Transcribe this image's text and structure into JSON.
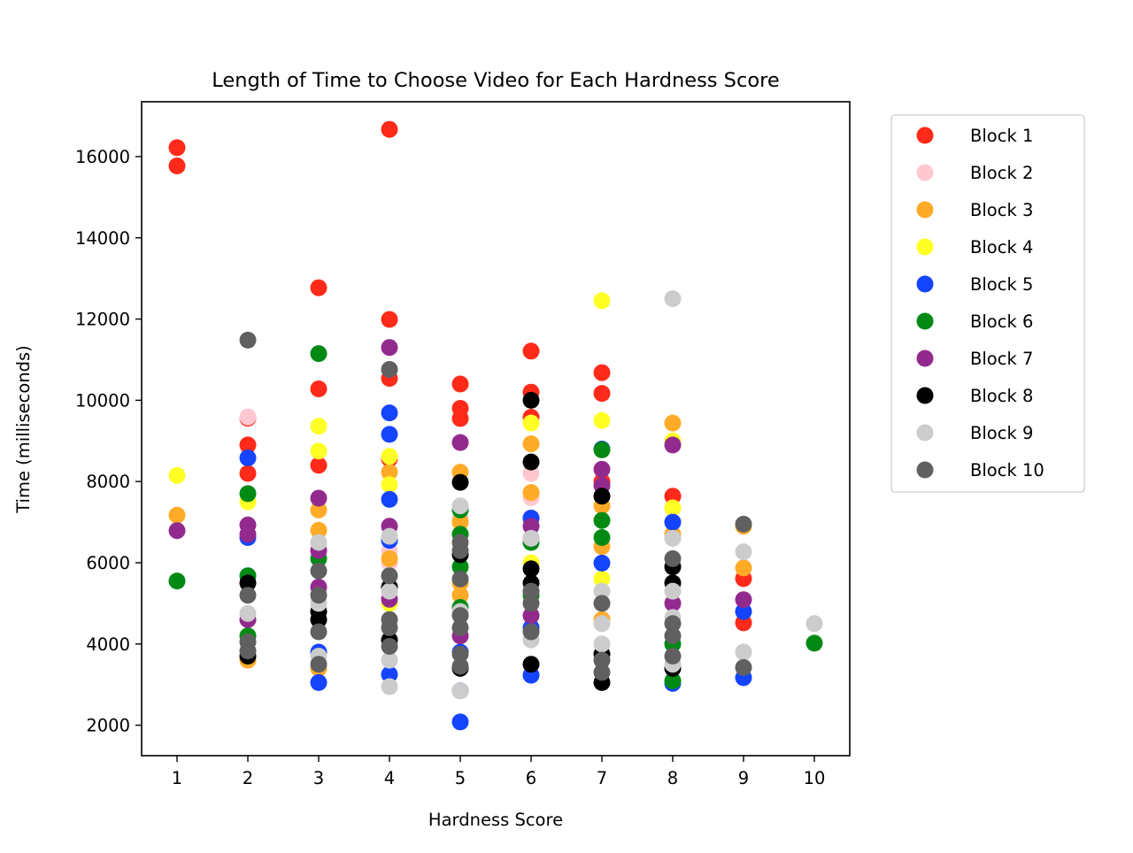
{
  "chart_data": {
    "type": "scatter",
    "title": "Length of Time to Choose Video for Each Hardness Score",
    "xlabel": "Hardness Score",
    "ylabel": "Time (milliseconds)",
    "xlim": [
      0.5,
      10.5
    ],
    "ylim": [
      1250,
      17350
    ],
    "x_ticks": [
      1,
      2,
      3,
      4,
      5,
      6,
      7,
      8,
      9,
      10
    ],
    "y_ticks": [
      2000,
      4000,
      6000,
      8000,
      10000,
      12000,
      14000,
      16000
    ],
    "grid": false,
    "legend_position": "outside-right",
    "series": [
      {
        "name": "Block 1",
        "color": "#ff2a1a",
        "points": [
          [
            1,
            16220
          ],
          [
            1,
            15770
          ],
          [
            2,
            9560
          ],
          [
            2,
            8900
          ],
          [
            2,
            8200
          ],
          [
            3,
            12770
          ],
          [
            3,
            10280
          ],
          [
            3,
            8400
          ],
          [
            4,
            16670
          ],
          [
            4,
            11990
          ],
          [
            4,
            10540
          ],
          [
            4,
            8560
          ],
          [
            5,
            10400
          ],
          [
            5,
            9800
          ],
          [
            5,
            9550
          ],
          [
            6,
            11210
          ],
          [
            6,
            10200
          ],
          [
            6,
            9580
          ],
          [
            7,
            10680
          ],
          [
            7,
            10170
          ],
          [
            7,
            8000
          ],
          [
            8,
            7640
          ],
          [
            9,
            5610
          ],
          [
            9,
            4520
          ]
        ]
      },
      {
        "name": "Block 2",
        "color": "#ffc8d0",
        "points": [
          [
            2,
            9590
          ],
          [
            4,
            6300
          ],
          [
            4,
            6000
          ],
          [
            5,
            7100
          ],
          [
            6,
            8200
          ],
          [
            6,
            7600
          ],
          [
            6,
            7000
          ]
        ]
      },
      {
        "name": "Block 3",
        "color": "#ffab28",
        "points": [
          [
            1,
            7170
          ],
          [
            2,
            3600
          ],
          [
            3,
            7300
          ],
          [
            3,
            6800
          ],
          [
            3,
            3400
          ],
          [
            4,
            8230
          ],
          [
            4,
            6100
          ],
          [
            5,
            8230
          ],
          [
            5,
            7000
          ],
          [
            5,
            5500
          ],
          [
            5,
            5200
          ],
          [
            6,
            8930
          ],
          [
            6,
            7730
          ],
          [
            6,
            7100
          ],
          [
            7,
            7400
          ],
          [
            7,
            6400
          ],
          [
            7,
            4600
          ],
          [
            8,
            9440
          ],
          [
            8,
            6700
          ],
          [
            9,
            6900
          ],
          [
            9,
            5870
          ]
        ]
      },
      {
        "name": "Block 4",
        "color": "#ffff26",
        "points": [
          [
            1,
            8150
          ],
          [
            2,
            7500
          ],
          [
            3,
            9360
          ],
          [
            3,
            8750
          ],
          [
            4,
            8620
          ],
          [
            4,
            7920
          ],
          [
            4,
            5000
          ],
          [
            5,
            6500
          ],
          [
            6,
            9440
          ],
          [
            6,
            6000
          ],
          [
            7,
            12450
          ],
          [
            7,
            9500
          ],
          [
            7,
            5600
          ],
          [
            8,
            9000
          ],
          [
            8,
            7350
          ]
        ]
      },
      {
        "name": "Block 5",
        "color": "#1544ff",
        "points": [
          [
            2,
            8580
          ],
          [
            2,
            6620
          ],
          [
            3,
            3050
          ],
          [
            3,
            3800
          ],
          [
            4,
            9690
          ],
          [
            4,
            9160
          ],
          [
            4,
            7560
          ],
          [
            4,
            6550
          ],
          [
            4,
            3250
          ],
          [
            5,
            2080
          ],
          [
            5,
            2850
          ],
          [
            5,
            3800
          ],
          [
            6,
            7100
          ],
          [
            6,
            4400
          ],
          [
            6,
            3230
          ],
          [
            7,
            8800
          ],
          [
            7,
            5990
          ],
          [
            8,
            7000
          ],
          [
            8,
            3030
          ],
          [
            9,
            4800
          ],
          [
            9,
            3170
          ]
        ]
      },
      {
        "name": "Block 6",
        "color": "#008a14",
        "points": [
          [
            1,
            5550
          ],
          [
            2,
            7700
          ],
          [
            2,
            5680
          ],
          [
            2,
            4200
          ],
          [
            3,
            11150
          ],
          [
            3,
            6100
          ],
          [
            5,
            7300
          ],
          [
            5,
            6700
          ],
          [
            5,
            5900
          ],
          [
            5,
            4900
          ],
          [
            6,
            6500
          ],
          [
            6,
            5200
          ],
          [
            7,
            8780
          ],
          [
            7,
            7040
          ],
          [
            7,
            6620
          ],
          [
            8,
            4000
          ],
          [
            8,
            3090
          ],
          [
            10,
            4020
          ]
        ]
      },
      {
        "name": "Block 7",
        "color": "#922a8e",
        "points": [
          [
            1,
            6790
          ],
          [
            2,
            6930
          ],
          [
            2,
            6700
          ],
          [
            2,
            4600
          ],
          [
            3,
            7590
          ],
          [
            3,
            6300
          ],
          [
            3,
            5400
          ],
          [
            4,
            11300
          ],
          [
            4,
            6900
          ],
          [
            4,
            5100
          ],
          [
            5,
            8960
          ],
          [
            5,
            4200
          ],
          [
            6,
            6900
          ],
          [
            6,
            6600
          ],
          [
            6,
            4700
          ],
          [
            7,
            8300
          ],
          [
            7,
            7900
          ],
          [
            8,
            8900
          ],
          [
            8,
            5000
          ],
          [
            9,
            5090
          ]
        ]
      },
      {
        "name": "Block 8",
        "color": "#000000",
        "points": [
          [
            2,
            5500
          ],
          [
            2,
            3700
          ],
          [
            3,
            4800
          ],
          [
            3,
            4600
          ],
          [
            4,
            5400
          ],
          [
            4,
            4100
          ],
          [
            5,
            7980
          ],
          [
            5,
            6200
          ],
          [
            5,
            3400
          ],
          [
            6,
            10000
          ],
          [
            6,
            8480
          ],
          [
            6,
            5850
          ],
          [
            6,
            5500
          ],
          [
            6,
            3500
          ],
          [
            7,
            7640
          ],
          [
            7,
            3750
          ],
          [
            7,
            3050
          ],
          [
            8,
            5900
          ],
          [
            8,
            5500
          ],
          [
            8,
            3400
          ]
        ]
      },
      {
        "name": "Block 9",
        "color": "#cccccc",
        "points": [
          [
            2,
            4750
          ],
          [
            3,
            6500
          ],
          [
            3,
            5000
          ],
          [
            3,
            3700
          ],
          [
            4,
            6650
          ],
          [
            4,
            5300
          ],
          [
            4,
            3600
          ],
          [
            4,
            2950
          ],
          [
            5,
            7400
          ],
          [
            5,
            4800
          ],
          [
            5,
            2850
          ],
          [
            6,
            6600
          ],
          [
            6,
            4100
          ],
          [
            7,
            5300
          ],
          [
            7,
            4500
          ],
          [
            7,
            4000
          ],
          [
            8,
            12500
          ],
          [
            8,
            6600
          ],
          [
            8,
            5300
          ],
          [
            8,
            4650
          ],
          [
            8,
            3500
          ],
          [
            9,
            6270
          ],
          [
            9,
            3800
          ],
          [
            10,
            4500
          ]
        ]
      },
      {
        "name": "Block 10",
        "color": "#606060",
        "points": [
          [
            2,
            11480
          ],
          [
            2,
            5200
          ],
          [
            2,
            4050
          ],
          [
            2,
            3830
          ],
          [
            3,
            5800
          ],
          [
            3,
            5200
          ],
          [
            3,
            4300
          ],
          [
            3,
            3500
          ],
          [
            4,
            10760
          ],
          [
            4,
            5680
          ],
          [
            4,
            4600
          ],
          [
            4,
            4400
          ],
          [
            4,
            3940
          ],
          [
            5,
            6500
          ],
          [
            5,
            6300
          ],
          [
            5,
            5600
          ],
          [
            5,
            4700
          ],
          [
            5,
            4400
          ],
          [
            5,
            3750
          ],
          [
            5,
            3450
          ],
          [
            6,
            5300
          ],
          [
            6,
            5000
          ],
          [
            6,
            4300
          ],
          [
            7,
            5000
          ],
          [
            7,
            3600
          ],
          [
            7,
            3300
          ],
          [
            8,
            6100
          ],
          [
            8,
            4500
          ],
          [
            8,
            4200
          ],
          [
            8,
            3700
          ],
          [
            9,
            6950
          ],
          [
            9,
            3420
          ]
        ]
      }
    ]
  }
}
